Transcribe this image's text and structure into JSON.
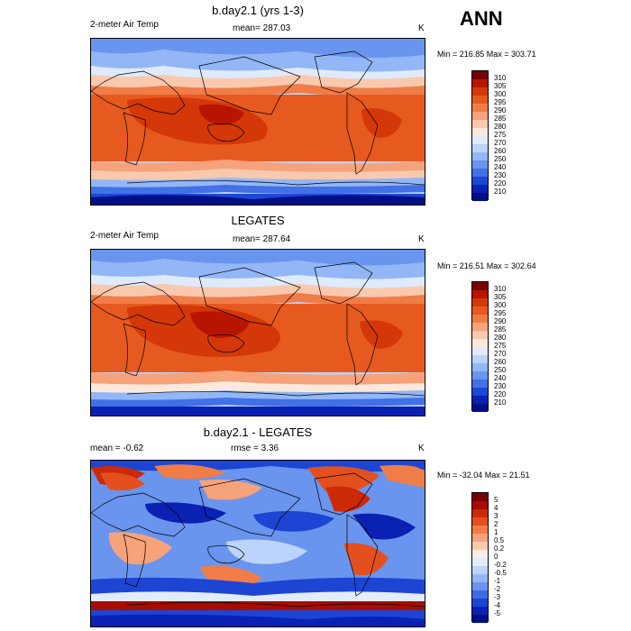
{
  "season": "ANN",
  "panels": [
    {
      "title": "b.day2.1 (yrs 1-3)",
      "left_text": "2-meter Air Temp",
      "center_text": "mean= 287.03",
      "units": "K",
      "minmax": "Min = 216.85 Max = 303.71",
      "colorbar_labels": [
        "310",
        "305",
        "300",
        "295",
        "290",
        "285",
        "280",
        "275",
        "270",
        "260",
        "250",
        "240",
        "230",
        "220",
        "210"
      ],
      "colorbar_colors": [
        "#7a0000",
        "#b81500",
        "#d43808",
        "#e65a1f",
        "#f07d48",
        "#f6a27b",
        "#fac9ad",
        "#fde9dc",
        "#dfeafc",
        "#bcd3fb",
        "#93b7f6",
        "#6a95ee",
        "#4270e6",
        "#1d47d6",
        "#0a22b3",
        "#000f85"
      ]
    },
    {
      "title": "LEGATES",
      "left_text": "2-meter Air Temp",
      "center_text": "mean= 287.64",
      "units": "K",
      "minmax": "Min = 216.51 Max = 302.64",
      "colorbar_labels": [
        "310",
        "305",
        "300",
        "295",
        "290",
        "285",
        "280",
        "275",
        "270",
        "260",
        "250",
        "240",
        "230",
        "220",
        "210"
      ],
      "colorbar_colors": [
        "#7a0000",
        "#b81500",
        "#d43808",
        "#e65a1f",
        "#f07d48",
        "#f6a27b",
        "#fac9ad",
        "#fde9dc",
        "#dfeafc",
        "#bcd3fb",
        "#93b7f6",
        "#6a95ee",
        "#4270e6",
        "#1d47d6",
        "#0a22b3",
        "#000f85"
      ]
    },
    {
      "title": "b.day2.1 - LEGATES",
      "left_text": "mean =  -0.62",
      "center_text": "rmse =   3.36",
      "units": "K",
      "minmax": "Min = -32.04 Max =  21.51",
      "colorbar_labels": [
        "5",
        "4",
        "3",
        "2",
        "1",
        "0.5",
        "0.2",
        "0",
        "-0.2",
        "-0.5",
        "-1",
        "-2",
        "-3",
        "-4",
        "-5"
      ],
      "colorbar_colors": [
        "#7a0000",
        "#a80c00",
        "#cc2a06",
        "#e3501e",
        "#f07d48",
        "#f6a27b",
        "#fac9ad",
        "#fdece3",
        "#e3ecfd",
        "#bcd3fb",
        "#93b7f6",
        "#6a95ee",
        "#3f6ae4",
        "#1d45d4",
        "#0a22b3",
        "#000f85"
      ]
    }
  ]
}
